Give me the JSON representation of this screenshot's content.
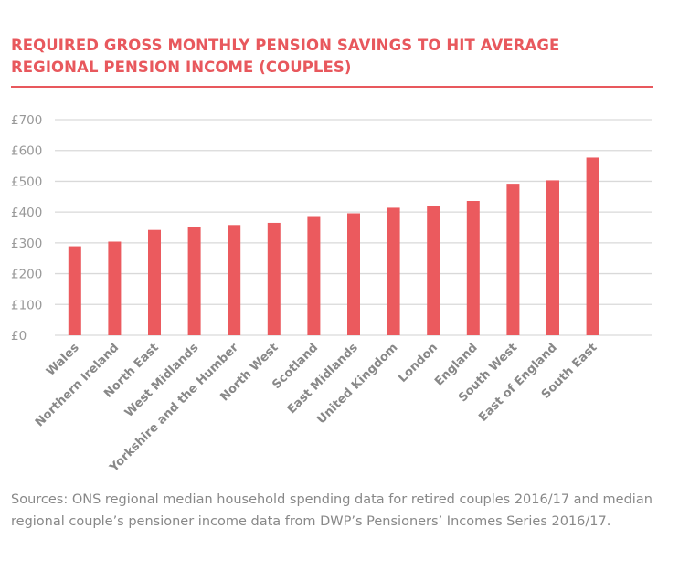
{
  "chart_data": {
    "type": "bar",
    "title": "REQUIRED GROSS MONTHLY PENSION SAVINGS TO HIT AVERAGE REGIONAL PENSION INCOME (COUPLES)",
    "xlabel": "",
    "ylabel": "",
    "ylim": [
      0,
      700
    ],
    "yticks": [
      0,
      100,
      200,
      300,
      400,
      500,
      600,
      700
    ],
    "ytick_labels": [
      "£0",
      "£100",
      "£200",
      "£300",
      "£400",
      "£500",
      "£600",
      "£700"
    ],
    "grid": true,
    "categories": [
      "Wales",
      "Northern Ireland",
      "North East",
      "West Midlands",
      "Yorkshire and the Humber",
      "North West",
      "Scotland",
      "East Midlands",
      "United Kingdom",
      "London",
      "England",
      "South West",
      "East of England",
      "South East"
    ],
    "values": [
      289,
      304,
      342,
      351,
      358,
      365,
      387,
      396,
      414,
      420,
      436,
      492,
      503,
      577
    ],
    "bar_color": "#eb5a5e",
    "source": "Sources: ONS regional median household spending data for retired couples 2016/17 and median regional couple’s pensioner income data from DWP’s Pensioners’ Incomes Series 2016/17."
  }
}
